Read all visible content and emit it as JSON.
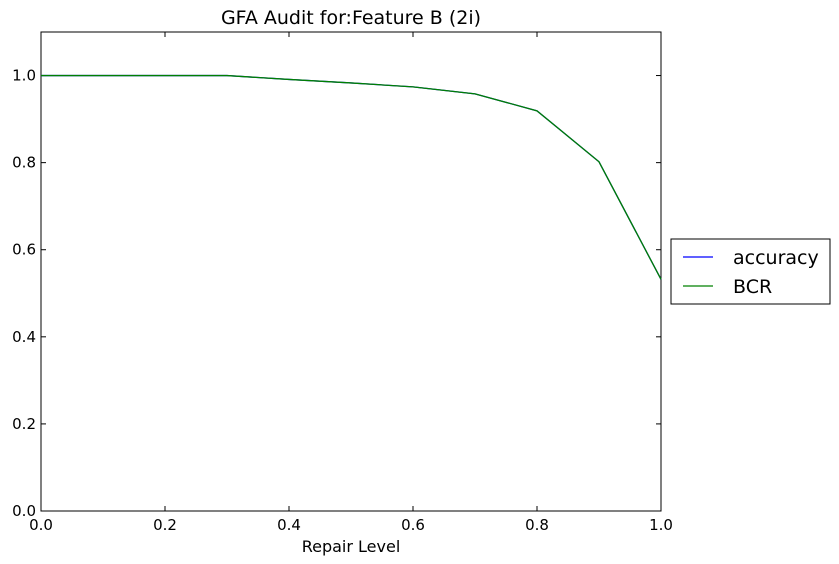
{
  "chart_data": {
    "type": "line",
    "title": "GFA Audit for:Feature B (2i)",
    "xlabel": "Repair Level",
    "ylabel": "",
    "xlim": [
      0.0,
      1.0
    ],
    "ylim": [
      0.0,
      1.1
    ],
    "xticks": [
      "0.0",
      "0.2",
      "0.4",
      "0.6",
      "0.8",
      "1.0"
    ],
    "yticks": [
      "0.0",
      "0.2",
      "0.4",
      "0.6",
      "0.8",
      "1.0"
    ],
    "x": [
      0.0,
      0.1,
      0.2,
      0.3,
      0.4,
      0.5,
      0.6,
      0.7,
      0.8,
      0.9,
      1.0
    ],
    "series": [
      {
        "name": "accuracy",
        "color": "#0000ff",
        "values": [
          1.0,
          1.0,
          1.0,
          1.0,
          0.991,
          0.983,
          0.974,
          0.958,
          0.919,
          0.802,
          0.532
        ]
      },
      {
        "name": "BCR",
        "color": "#008000",
        "values": [
          1.0,
          1.0,
          1.0,
          1.0,
          0.991,
          0.983,
          0.974,
          0.958,
          0.919,
          0.802,
          0.532
        ]
      }
    ],
    "grid": false,
    "legend_position": "right"
  }
}
